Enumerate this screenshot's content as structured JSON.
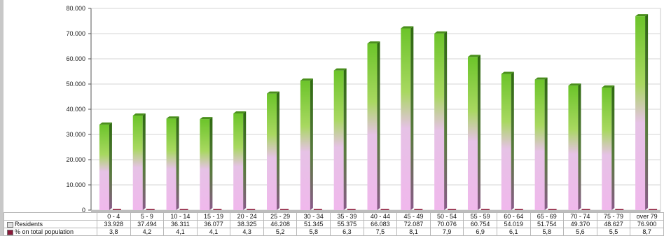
{
  "chart_data": {
    "type": "bar",
    "categories": [
      "0 - 4",
      "5 - 9",
      "10 - 14",
      "15 - 19",
      "20 - 24",
      "25 - 29",
      "30 - 34",
      "35 - 39",
      "40 - 44",
      "45 - 49",
      "50 - 54",
      "55 - 59",
      "60 - 64",
      "65 - 69",
      "70 - 74",
      "75 - 79",
      "over 79"
    ],
    "series": [
      {
        "name": "Residents",
        "values": [
          33928,
          37494,
          36311,
          36077,
          38325,
          46208,
          51345,
          55375,
          66083,
          72087,
          70076,
          60754,
          54019,
          51754,
          49370,
          48627,
          76900
        ]
      },
      {
        "name": "% on total population",
        "values": [
          3.8,
          4.2,
          4.1,
          4.1,
          4.3,
          5.2,
          5.8,
          6.3,
          7.5,
          8.1,
          7.9,
          6.9,
          6.1,
          5.8,
          5.6,
          5.5,
          8.7
        ]
      }
    ],
    "ylim": [
      0,
      80000
    ],
    "yticks": [
      "0",
      "10.000",
      "20.000",
      "30.000",
      "40.000",
      "50.000",
      "60.000",
      "70.000",
      "80.000"
    ],
    "ytick_values": [
      0,
      10000,
      20000,
      30000,
      40000,
      50000,
      60000,
      70000,
      80000
    ],
    "grid": true,
    "legend": "table-bottom",
    "colors": {
      "residents_top": "#6cc42a",
      "residents_bottom": "#f0b8ec",
      "percent": "#8b1a3a"
    }
  },
  "table": {
    "rows": [
      {
        "label": "Residents",
        "values": [
          "33.928",
          "37.494",
          "36.311",
          "36.077",
          "38.325",
          "46.208",
          "51.345",
          "55.375",
          "66.083",
          "72.087",
          "70.076",
          "60.754",
          "54.019",
          "51.754",
          "49.370",
          "48.627",
          "76.900"
        ]
      },
      {
        "label": "% on total population",
        "values": [
          "3,8",
          "4,2",
          "4,1",
          "4,1",
          "4,3",
          "5,2",
          "5,8",
          "6,3",
          "7,5",
          "8,1",
          "7,9",
          "6,9",
          "6,1",
          "5,8",
          "5,6",
          "5,5",
          "8,7"
        ]
      }
    ]
  }
}
